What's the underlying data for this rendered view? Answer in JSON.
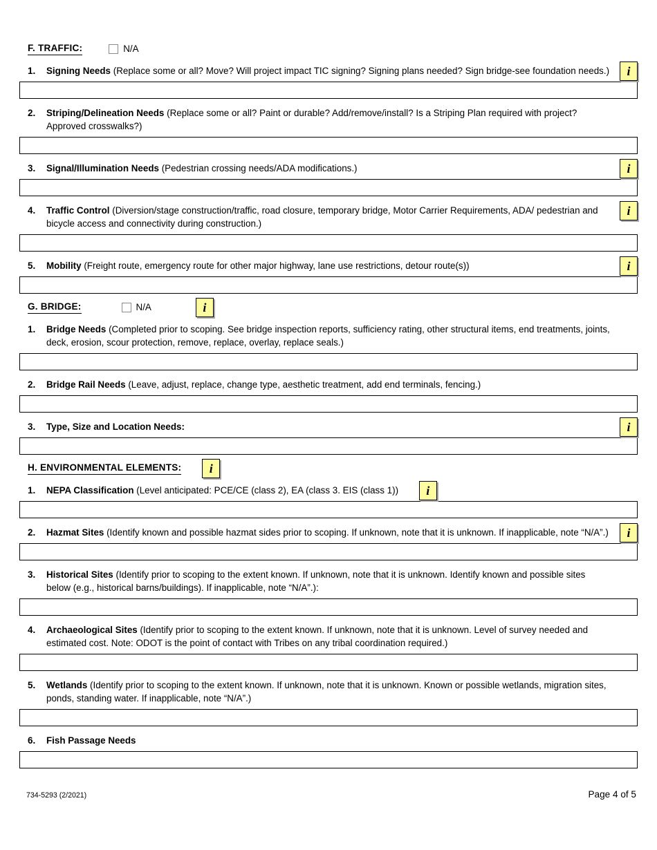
{
  "icons": {
    "info_glyph": "i"
  },
  "sections": {
    "traffic": {
      "heading": "F. TRAFFIC:",
      "na_label": "N/A",
      "na_checked": false,
      "items": [
        {
          "num": "1.",
          "label": "Signing Needs",
          "desc": "(Replace some or all? Move? Will project impact TIC signing? Signing plans needed? Sign bridge-see foundation needs.)",
          "value": ""
        },
        {
          "num": "2.",
          "label": "Striping/Delineation Needs",
          "desc": "(Replace some or all? Paint or durable? Add/remove/install? Is a Striping Plan required with project? Approved crosswalks?)",
          "value": ""
        },
        {
          "num": "3.",
          "label": "Signal/Illumination Needs",
          "desc": "(Pedestrian crossing needs/ADA modifications.)",
          "value": ""
        },
        {
          "num": "4.",
          "label": "Traffic Control",
          "desc": "(Diversion/stage construction/traffic, road closure, temporary bridge, Motor Carrier Requirements, ADA/ pedestrian and bicycle access and connectivity during construction.)",
          "value": ""
        },
        {
          "num": "5.",
          "label": "Mobility",
          "desc": "(Freight route, emergency route for other major highway, lane use restrictions, detour route(s))",
          "value": ""
        }
      ]
    },
    "bridge": {
      "heading": "G. BRIDGE:",
      "na_label": "N/A",
      "na_checked": false,
      "items": [
        {
          "num": "1.",
          "label": "Bridge Needs",
          "desc": "(Completed prior to scoping. See bridge inspection reports, sufficiency rating, other structural items, end treatments, joints, deck, erosion, scour protection, remove, replace, overlay, replace seals.)",
          "value": ""
        },
        {
          "num": "2.",
          "label": "Bridge Rail Needs",
          "desc": "(Leave, adjust, replace, change type, aesthetic treatment, add end terminals, fencing.)",
          "value": ""
        },
        {
          "num": "3.",
          "label": "Type, Size and Location Needs:",
          "desc": "",
          "value": ""
        }
      ]
    },
    "environmental": {
      "heading": "H. ENVIRONMENTAL ELEMENTS:",
      "items": [
        {
          "num": "1.",
          "label": "NEPA Classification",
          "desc": "(Level anticipated: PCE/CE (class 2), EA (class 3. EIS (class 1))",
          "value": ""
        },
        {
          "num": "2.",
          "label": "Hazmat Sites",
          "desc": "(Identify known and possible hazmat sides prior to scoping. If unknown, note that it is unknown. If inapplicable, note “N/A”.)",
          "value": ""
        },
        {
          "num": "3.",
          "label": "Historical Sites",
          "desc": "(Identify prior to scoping to the extent known. If unknown, note that it is unknown. Identify known and possible sites below (e.g., historical barns/buildings). If inapplicable, note “N/A”.):",
          "value": ""
        },
        {
          "num": "4.",
          "label": "Archaeological Sites",
          "desc": "(Identify prior to scoping to the extent known. If unknown, note that it is unknown. Level of survey needed and estimated cost. Note: ODOT is the point of contact with Tribes on any tribal coordination required.)",
          "value": ""
        },
        {
          "num": "5.",
          "label": "Wetlands",
          "desc": "(Identify prior to scoping to the extent known. If unknown, note that it is unknown. Known or possible wetlands, migration sites, ponds, standing water. If inapplicable, note “N/A”.)",
          "value": ""
        },
        {
          "num": "6.",
          "label": "Fish Passage Needs",
          "desc": "",
          "value": ""
        }
      ]
    }
  },
  "footer": {
    "form_number": "734-5293 (2/2021)",
    "page_label": "Page 4 of 5"
  }
}
